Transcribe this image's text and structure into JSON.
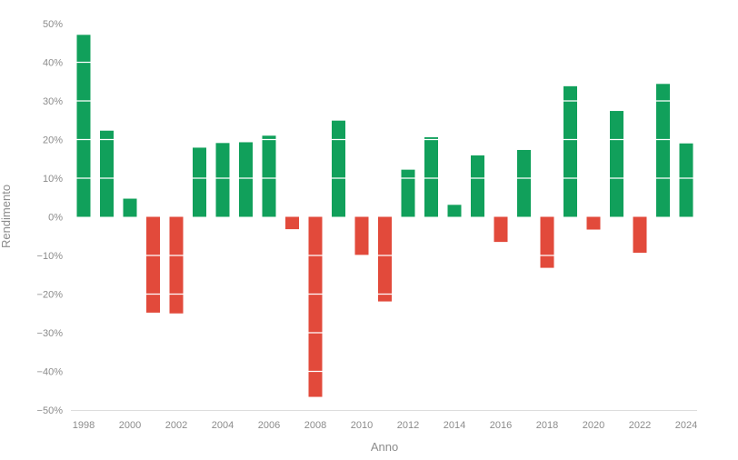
{
  "chart_data": {
    "type": "bar",
    "title": "",
    "xlabel": "Anno",
    "ylabel": "Rendimento",
    "ylim": [
      -50,
      50
    ],
    "yticks": [
      50,
      40,
      30,
      20,
      10,
      0,
      -10,
      -20,
      -30,
      -40,
      -50
    ],
    "ytick_suffix": "%",
    "xtick_labels": [
      "1998",
      "2000",
      "2002",
      "2004",
      "2006",
      "2008",
      "2010",
      "2012",
      "2014",
      "2016",
      "2018",
      "2020",
      "2022",
      "2024"
    ],
    "grid": "horizontal",
    "colors": {
      "positive": "#11a05b",
      "negative": "#e24a3b",
      "axis": "#dddddd"
    },
    "categories": [
      "1998",
      "1999",
      "2000",
      "2001",
      "2002",
      "2003",
      "2004",
      "2005",
      "2006",
      "2007",
      "2008",
      "2009",
      "2010",
      "2011",
      "2012",
      "2013",
      "2014",
      "2015",
      "2016",
      "2017",
      "2018",
      "2019",
      "2020",
      "2021",
      "2022",
      "2023",
      "2024"
    ],
    "values": [
      47.1,
      22.3,
      4.7,
      -24.8,
      -25.0,
      17.9,
      19.1,
      19.3,
      21.0,
      -3.2,
      -46.6,
      24.9,
      -9.9,
      -21.9,
      12.2,
      20.6,
      3.1,
      15.9,
      -6.5,
      17.3,
      -13.2,
      33.8,
      -3.3,
      27.4,
      -9.3,
      34.4,
      19.0
    ]
  }
}
